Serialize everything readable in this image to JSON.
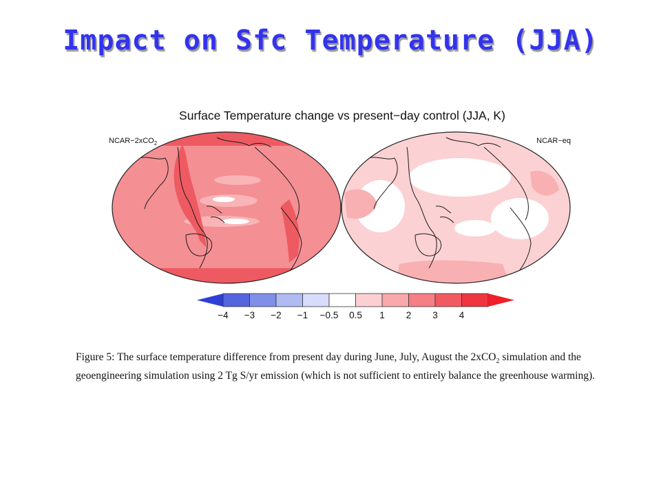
{
  "slide": {
    "title": "Impact on Sfc Temperature (JJA)"
  },
  "figure": {
    "title": "Surface Temperature change vs present−day control (JJA, K)",
    "left_panel": {
      "label_main": "NCAR−2xCO",
      "label_sub": "2"
    },
    "right_panel": {
      "label": "NCAR−eq"
    },
    "colorbar": {
      "ticks": [
        "−4",
        "−3",
        "−2",
        "−1",
        "−0.5",
        "0.5",
        "1",
        "2",
        "3",
        "4"
      ],
      "colors": [
        "#2e40d8",
        "#5565e0",
        "#8090e8",
        "#b0bbf2",
        "#d6dcfa",
        "#ffffff",
        "#fcd0d2",
        "#f9a8ab",
        "#f57f85",
        "#f25a62",
        "#ef3540",
        "#f01f28"
      ]
    },
    "panel_colors": {
      "warm_base": "#f48f94",
      "warm_strong": "#ee5a61",
      "warm_light": "#f9b4b7",
      "eq_base": "#fbd1d3",
      "eq_white": "#ffffff",
      "eq_mid": "#f8b0b3"
    }
  },
  "caption": {
    "part1": "Figure 5: The surface temperature difference from present day during June, July, August the 2xCO",
    "sub": "2",
    "part2": " simulation and the geoengineering simulation using 2 Tg S/yr emission (which is not sufficient to entirely balance the greenhouse warming)."
  }
}
